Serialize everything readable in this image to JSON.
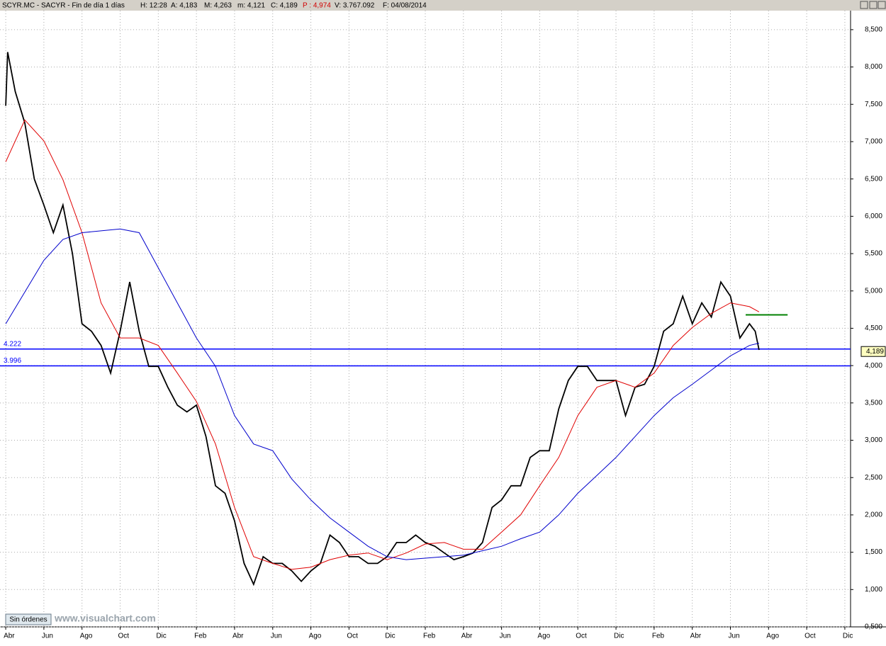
{
  "header": {
    "title": "SCYR.MC - SACYR - Fin de día 1 días",
    "time": "H: 12:28",
    "open": "A: 4,183",
    "high": "M: 4,263",
    "low": "m: 4,121",
    "close": "C: 4,189",
    "prev": "P : 4,974",
    "volume": "V: 3.767.092",
    "date": "F: 04/08/2014"
  },
  "footer": {
    "orders": "Sin órdenes",
    "site": "www.visualchart.com"
  },
  "chart_data": {
    "type": "line",
    "xlim": [
      -0.3,
      44.3
    ],
    "xticks": [
      {
        "value": 0,
        "label": "Abr"
      },
      {
        "value": 2,
        "label": "Jun"
      },
      {
        "value": 4,
        "label": "Ago"
      },
      {
        "value": 6,
        "label": "Oct"
      },
      {
        "value": 8,
        "label": "Dic"
      },
      {
        "value": 10,
        "label": "Feb"
      },
      {
        "value": 12,
        "label": "Abr"
      },
      {
        "value": 14,
        "label": "Jun"
      },
      {
        "value": 16,
        "label": "Ago"
      },
      {
        "value": 18,
        "label": "Oct"
      },
      {
        "value": 20,
        "label": "Dic"
      },
      {
        "value": 22,
        "label": "Feb"
      },
      {
        "value": 24,
        "label": "Abr"
      },
      {
        "value": 26,
        "label": "Jun"
      },
      {
        "value": 28,
        "label": "Ago"
      },
      {
        "value": 30,
        "label": "Oct"
      },
      {
        "value": 32,
        "label": "Dic"
      },
      {
        "value": 34,
        "label": "Feb"
      },
      {
        "value": 36,
        "label": "Abr"
      },
      {
        "value": 38,
        "label": "Jun"
      },
      {
        "value": 40,
        "label": "Ago"
      },
      {
        "value": 42,
        "label": "Oct"
      },
      {
        "value": 44,
        "label": "Dic"
      }
    ],
    "ylim": [
      0.5,
      8.755
    ],
    "yticks": [
      {
        "value": 0.5,
        "label": "0,500"
      },
      {
        "value": 1,
        "label": "1,000"
      },
      {
        "value": 1.5,
        "label": "1,500"
      },
      {
        "value": 2,
        "label": "2,000"
      },
      {
        "value": 2.5,
        "label": "2,500"
      },
      {
        "value": 3,
        "label": "3,000"
      },
      {
        "value": 3.5,
        "label": "3,500"
      },
      {
        "value": 4,
        "label": "4,000"
      },
      {
        "value": 4.5,
        "label": "4,500"
      },
      {
        "value": 5,
        "label": "5,000"
      },
      {
        "value": 5.5,
        "label": "5,500"
      },
      {
        "value": 6,
        "label": "6,000"
      },
      {
        "value": 6.5,
        "label": "6,500"
      },
      {
        "value": 7,
        "label": "7,000"
      },
      {
        "value": 7.5,
        "label": "7,500"
      },
      {
        "value": 8,
        "label": "8,000"
      },
      {
        "value": 8.5,
        "label": "8,500"
      }
    ],
    "grid": true,
    "series": [
      {
        "color": "#000000",
        "x": [
          0,
          0.1,
          0.5,
          1,
          1.5,
          2,
          2.5,
          3,
          3.5,
          4,
          4.5,
          5,
          5.5,
          6,
          6.5,
          7,
          7.5,
          8,
          8.5,
          9,
          9.5,
          10,
          10.5,
          11,
          11.5,
          12,
          12.5,
          13,
          13.5,
          14,
          14.5,
          15,
          15.5,
          16,
          16.5,
          17,
          17.5,
          18,
          18.5,
          19,
          19.5,
          20,
          20.5,
          21,
          21.5,
          22,
          22.5,
          23,
          23.5,
          24,
          24.5,
          25,
          25.5,
          26,
          26.5,
          27,
          27.5,
          28,
          28.5,
          29,
          29.5,
          30,
          30.5,
          31,
          31.5,
          32,
          32.5,
          33,
          33.5,
          34,
          34.5,
          35,
          35.5,
          36,
          36.5,
          37,
          37.5,
          38,
          38.5,
          39,
          39.3,
          39.5
        ],
        "values": [
          7.48,
          8.2,
          7.67,
          7.25,
          6.5,
          6.15,
          5.78,
          6.15,
          5.5,
          4.56,
          4.46,
          4.27,
          3.9,
          4.46,
          5.12,
          4.46,
          3.99,
          3.99,
          3.71,
          3.47,
          3.38,
          3.47,
          3.05,
          2.39,
          2.29,
          1.92,
          1.35,
          1.07,
          1.44,
          1.35,
          1.35,
          1.25,
          1.11,
          1.25,
          1.35,
          1.73,
          1.63,
          1.44,
          1.44,
          1.35,
          1.35,
          1.44,
          1.63,
          1.63,
          1.73,
          1.63,
          1.58,
          1.49,
          1.4,
          1.44,
          1.49,
          1.63,
          2.1,
          2.2,
          2.39,
          2.39,
          2.77,
          2.86,
          2.86,
          3.42,
          3.8,
          3.99,
          3.99,
          3.8,
          3.8,
          3.8,
          3.33,
          3.71,
          3.75,
          3.99,
          4.46,
          4.56,
          4.93,
          4.56,
          4.84,
          4.65,
          5.12,
          4.93,
          4.37,
          4.56,
          4.46,
          4.21
        ]
      },
      {
        "color": "#e00000",
        "x": [
          0,
          1,
          2,
          3,
          4,
          5,
          6,
          7,
          8,
          9,
          10,
          11,
          12,
          13,
          14,
          15,
          16,
          17,
          18,
          19,
          20,
          21,
          22,
          23,
          24,
          25,
          26,
          27,
          28,
          29,
          30,
          31,
          32,
          33,
          34,
          35,
          36,
          37,
          38,
          39,
          39.5
        ],
        "values": [
          6.73,
          7.29,
          7.01,
          6.49,
          5.78,
          4.84,
          4.37,
          4.37,
          4.27,
          3.9,
          3.52,
          2.95,
          2.1,
          1.44,
          1.35,
          1.27,
          1.3,
          1.4,
          1.46,
          1.49,
          1.4,
          1.49,
          1.61,
          1.63,
          1.54,
          1.54,
          1.77,
          2.0,
          2.39,
          2.77,
          3.33,
          3.71,
          3.8,
          3.71,
          3.9,
          4.27,
          4.51,
          4.7,
          4.84,
          4.79,
          4.72
        ]
      },
      {
        "color": "#0000cc",
        "x": [
          0,
          2,
          3,
          4,
          6,
          7,
          8,
          9,
          10,
          11,
          12,
          13,
          14,
          15,
          16,
          17,
          18,
          19,
          20,
          21,
          22,
          23,
          24,
          25,
          26,
          27,
          28,
          29,
          30,
          31,
          32,
          33,
          34,
          35,
          36,
          37,
          38,
          39,
          39.5
        ],
        "values": [
          4.56,
          5.41,
          5.69,
          5.78,
          5.83,
          5.78,
          5.31,
          4.84,
          4.37,
          3.99,
          3.33,
          2.95,
          2.86,
          2.48,
          2.2,
          1.96,
          1.77,
          1.58,
          1.44,
          1.4,
          1.42,
          1.44,
          1.46,
          1.52,
          1.58,
          1.68,
          1.77,
          2.0,
          2.29,
          2.53,
          2.77,
          3.05,
          3.33,
          3.57,
          3.75,
          3.94,
          4.13,
          4.27,
          4.3
        ]
      }
    ],
    "levels": [
      {
        "value": 4.222,
        "label": "4.222",
        "color": "#0000ff"
      },
      {
        "value": 3.996,
        "label": "3.996",
        "color": "#0000ff"
      }
    ],
    "segment": {
      "x": [
        38.8,
        41.0
      ],
      "values": [
        4.68,
        4.68
      ],
      "color": "#008000"
    },
    "last_value": 4.189,
    "last_label": "4,189"
  }
}
